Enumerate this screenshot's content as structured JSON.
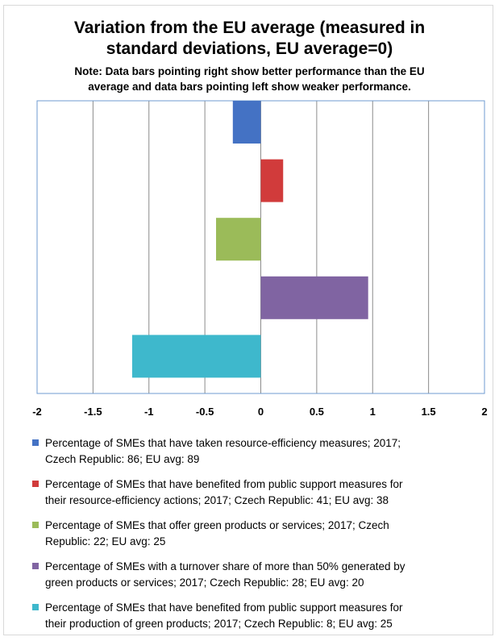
{
  "chart_data": {
    "type": "bar",
    "orientation": "horizontal",
    "title_line1": "Variation from the EU average (measured in",
    "title_line2": "standard deviations, EU average=0)",
    "subtitle_line1": "Note: Data bars pointing right show better performance than the EU",
    "subtitle_line2": "average and data bars pointing left show weaker performance.",
    "xlim": [
      -2,
      2
    ],
    "x_ticks": [
      "-2",
      "-1.5",
      "-1",
      "-0.5",
      "0",
      "0.5",
      "1",
      "1.5",
      "2"
    ],
    "grid": true,
    "legend_position": "bottom",
    "series": [
      {
        "name_line1": "Percentage of SMEs that have taken resource-efficiency measures; 2017;",
        "name_line2": "Czech Republic: 86; EU avg: 89",
        "value": -0.25,
        "color": "#4472C4"
      },
      {
        "name_line1": "Percentage of SMEs that have benefited from public support measures for",
        "name_line2": "their resource-efficiency actions; 2017; Czech Republic: 41; EU avg: 38",
        "value": 0.2,
        "color": "#D13B3B"
      },
      {
        "name_line1": "Percentage of SMEs that offer green products or services; 2017; Czech",
        "name_line2": "Republic: 22; EU avg: 25",
        "value": -0.4,
        "color": "#9BBB59"
      },
      {
        "name_line1": "Percentage of SMEs with a turnover share of more than 50% generated by",
        "name_line2": "green products or services; 2017; Czech Republic: 28; EU avg: 20",
        "value": 0.96,
        "color": "#8064A2"
      },
      {
        "name_line1": "Percentage of SMEs that have benefited from public support measures for",
        "name_line2": "their production of green products; 2017; Czech Republic: 8; EU avg: 25",
        "value": -1.15,
        "color": "#3EB8CC"
      }
    ]
  }
}
